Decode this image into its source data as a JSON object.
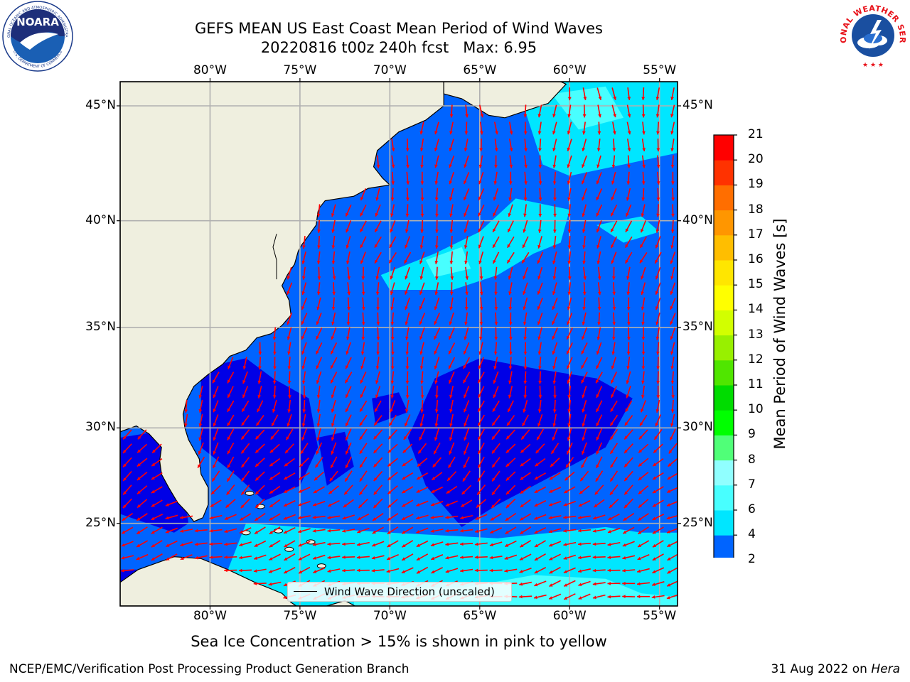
{
  "header": {
    "title": "GEFS MEAN US East Coast Mean Period of Wind Waves",
    "subtitle": "20220816 t00z 240h fcst   Max: 6.95"
  },
  "logos": {
    "left": {
      "text": "NOARA",
      "ring_text": "NATIONAL OCEANIC AND ATMOSPHERIC ADMINISTRATION",
      "ring_text_bottom": "U.S. DEPARTMENT OF COMMERCE",
      "icon": "noaa-logo-icon"
    },
    "right": {
      "ring_text": "NATIONAL WEATHER SERVICE",
      "icon": "nws-logo-icon"
    }
  },
  "map": {
    "extent": {
      "lon": [
        -85,
        -54
      ],
      "lat": [
        20.5,
        46
      ]
    },
    "lon_ticks": [
      "80°W",
      "75°W",
      "70°W",
      "65°W",
      "60°W",
      "55°W"
    ],
    "lon_values": [
      -80,
      -75,
      -70,
      -65,
      -60,
      -55
    ],
    "lat_ticks": [
      "45°N",
      "40°N",
      "35°N",
      "30°N",
      "25°N"
    ],
    "lat_values": [
      45,
      40,
      35,
      30,
      25
    ],
    "land_color": "#efefdf",
    "arrow_color": "#ff0000",
    "legend_label": "Wind Wave Direction (unscaled)"
  },
  "colorbar": {
    "label": "Mean Period of Wind Waves [s]",
    "ticks": [
      "2",
      "4",
      "6",
      "7",
      "8",
      "9",
      "10",
      "11",
      "12",
      "13",
      "14",
      "15",
      "16",
      "17",
      "18",
      "19",
      "20",
      "21"
    ],
    "colors": [
      "#0064ff",
      "#00e6ff",
      "#48ffff",
      "#90ffff",
      "#50ff78",
      "#00ff00",
      "#00dc00",
      "#50e600",
      "#98f000",
      "#d2ff00",
      "#ffff00",
      "#ffe600",
      "#ffbe00",
      "#ff9600",
      "#ff6e00",
      "#ff3200",
      "#ff0000"
    ],
    "under_color": "#0000e6"
  },
  "notes": {
    "sea_ice": "Sea Ice Concentration > 15% is shown in pink to yellow"
  },
  "footer": {
    "left": "NCEP/EMC/Verification Post Processing Product Generation Branch",
    "date": "31 Aug 2022 on",
    "machine": "Hera"
  }
}
